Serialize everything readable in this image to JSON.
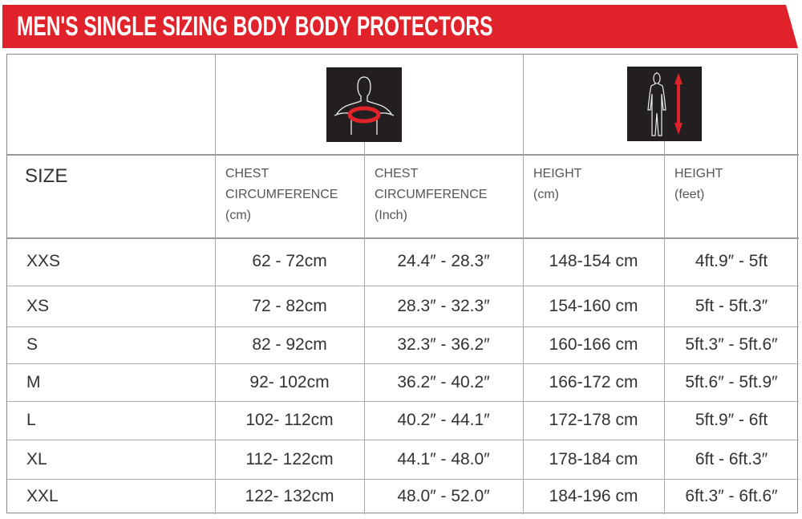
{
  "title": "MEN'S SINGLE SIZING BODY BODY PROTECTORS",
  "colors": {
    "banner": "#e0222a",
    "icon_bg": "#231f20",
    "icon_accent": "#e0222a"
  },
  "icons": {
    "chest": "chest-measurement-icon",
    "height": "height-measurement-icon"
  },
  "headers": {
    "size": "SIZE",
    "chest_cm": [
      "CHEST",
      "CIRCUMFERENCE",
      "(cm)"
    ],
    "chest_inch": [
      "CHEST",
      "CIRCUMFERENCE",
      "(Inch)"
    ],
    "height_cm": [
      "HEIGHT",
      "(cm)"
    ],
    "height_feet": [
      "HEIGHT",
      "(feet)"
    ]
  },
  "rows": [
    [
      "XXS",
      "62 - 72cm",
      "24.4″ - 28.3″",
      "148-154 cm",
      "4ft.9″ - 5ft"
    ],
    [
      "XS",
      "72 - 82cm",
      "28.3″ - 32.3″",
      "154-160 cm",
      "5ft - 5ft.3″"
    ],
    [
      "S",
      "82 - 92cm",
      "32.3″ - 36.2″",
      "160-166 cm",
      "5ft.3″ - 5ft.6″"
    ],
    [
      "M",
      "92- 102cm",
      "36.2″ - 40.2″",
      "166-172 cm",
      "5ft.6″ - 5ft.9″"
    ],
    [
      "L",
      "102- 112cm",
      "40.2″ - 44.1″",
      "172-178 cm",
      "5ft.9″ - 6ft"
    ],
    [
      "XL",
      "112- 122cm",
      "44.1″ - 48.0″",
      "178-184 cm",
      "6ft - 6ft.3″"
    ],
    [
      "XXL",
      "122- 132cm",
      "48.0″ - 52.0″",
      "184-196 cm",
      "6ft.3″ - 6ft.6″"
    ]
  ]
}
